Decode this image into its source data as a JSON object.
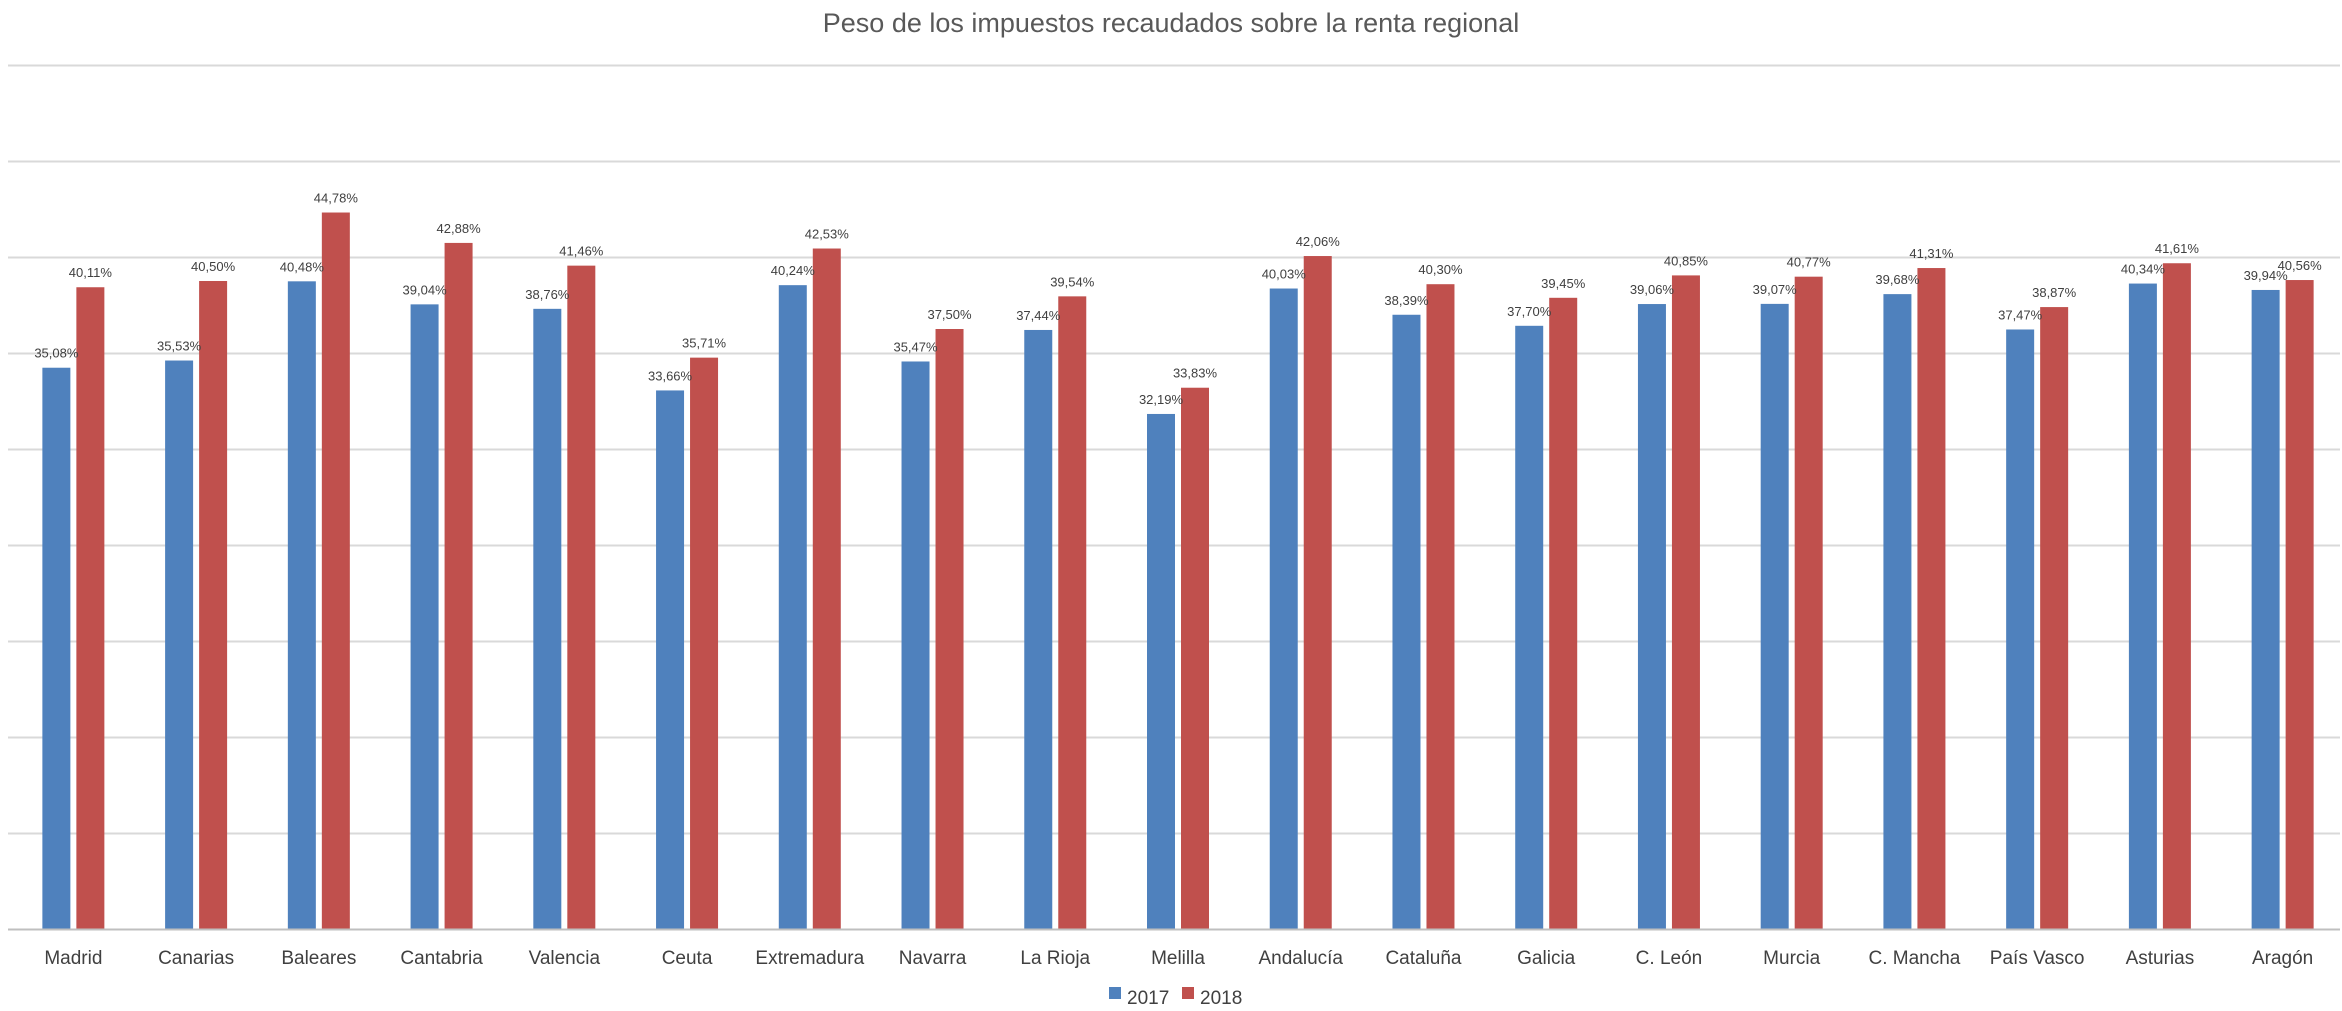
{
  "chart_data": {
    "type": "bar",
    "title": "Peso de los impuestos recaudados sobre la renta regional",
    "xlabel": "",
    "ylabel": "",
    "ylim": [
      0,
      54
    ],
    "grid": true,
    "legend_position": "bottom-center",
    "categories": [
      "Madrid",
      "Canarias",
      "Baleares",
      "Cantabria",
      "Valencia",
      "Ceuta",
      "Extremadura",
      "Navarra",
      "La Rioja",
      "Melilla",
      "Andalucía",
      "Cataluña",
      "Galicia",
      "C. León",
      "Murcia",
      "C. Mancha",
      "País Vasco",
      "Asturias",
      "Aragón"
    ],
    "series": [
      {
        "name": "2017",
        "color": "#4f81bd",
        "values": [
          35.08,
          35.53,
          40.48,
          39.04,
          38.76,
          33.66,
          40.24,
          35.47,
          37.44,
          32.19,
          40.03,
          38.39,
          37.7,
          39.06,
          39.07,
          39.68,
          37.47,
          40.34,
          39.94
        ],
        "labels": [
          "35,08%",
          "35,53%",
          "40,48%",
          "39,04%",
          "38,76%",
          "33,66%",
          "40,24%",
          "35,47%",
          "37,44%",
          "32,19%",
          "40,03%",
          "38,39%",
          "37,70%",
          "39,06%",
          "39,07%",
          "39,68%",
          "37,47%",
          "40,34%",
          "39,94%"
        ]
      },
      {
        "name": "2018",
        "color": "#c0504d",
        "values": [
          40.11,
          40.5,
          44.78,
          42.88,
          41.46,
          35.71,
          42.53,
          37.5,
          39.54,
          33.83,
          42.06,
          40.3,
          39.45,
          40.85,
          40.77,
          41.31,
          38.87,
          41.61,
          40.56
        ],
        "labels": [
          "40,11%",
          "40,50%",
          "44,78%",
          "42,88%",
          "41,46%",
          "35,71%",
          "42,53%",
          "37,50%",
          "39,54%",
          "33,83%",
          "42,06%",
          "40,30%",
          "39,45%",
          "40,85%",
          "40,77%",
          "41,31%",
          "38,87%",
          "41,61%",
          "40,56%"
        ]
      }
    ]
  }
}
